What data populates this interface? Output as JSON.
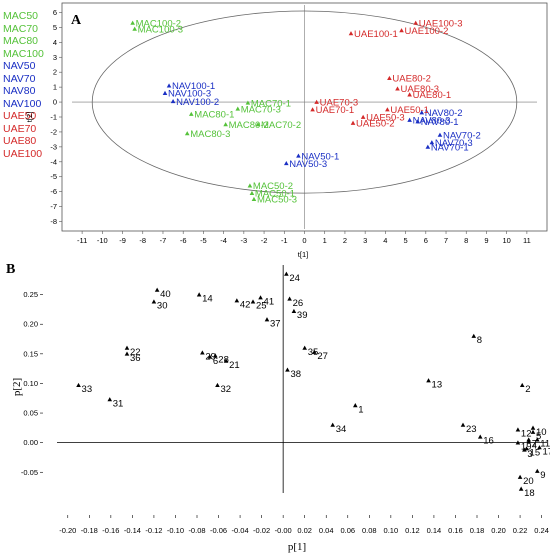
{
  "chart_data": [
    {
      "type": "scatter",
      "panel": "A",
      "xlabel": "t[1]",
      "ylabel": "t[2]",
      "xlim": [
        -11.5,
        11.5
      ],
      "ylim": [
        -8.5,
        6.5
      ],
      "xticks": [
        -11,
        -10,
        -9,
        -8,
        -7,
        -6,
        -5,
        -4,
        -3,
        -2,
        -1,
        0,
        1,
        2,
        3,
        4,
        5,
        6,
        7,
        8,
        9,
        10,
        11
      ],
      "yticks": [
        -8,
        -7,
        -6,
        -5,
        -4,
        -3,
        -2,
        -1,
        0,
        1,
        2,
        3,
        4,
        5,
        6
      ],
      "ellipse": {
        "rx": 10.5,
        "ry": 6.1
      },
      "colors": {
        "MAC": "#55c23a",
        "NAV": "#1a2fc4",
        "UAE": "#d42a2a"
      },
      "legend": [
        {
          "label": "MAC50",
          "color": "#55c23a"
        },
        {
          "label": "MAC70",
          "color": "#55c23a"
        },
        {
          "label": "MAC80",
          "color": "#55c23a"
        },
        {
          "label": "MAC100",
          "color": "#55c23a"
        },
        {
          "label": "NAV50",
          "color": "#1a2fc4"
        },
        {
          "label": "NAV70",
          "color": "#1a2fc4"
        },
        {
          "label": "NAV80",
          "color": "#1a2fc4"
        },
        {
          "label": "NAV100",
          "color": "#1a2fc4"
        },
        {
          "label": "UAE50",
          "color": "#d42a2a"
        },
        {
          "label": "UAE70",
          "color": "#d42a2a"
        },
        {
          "label": "UAE80",
          "color": "#d42a2a"
        },
        {
          "label": "UAE100",
          "color": "#d42a2a"
        }
      ],
      "points": [
        {
          "label": "MAC100-2",
          "group": "MAC",
          "x": -8.5,
          "y": 5.3
        },
        {
          "label": "MAC100-3",
          "group": "MAC",
          "x": -8.4,
          "y": 4.9
        },
        {
          "label": "MAC70-1",
          "group": "MAC",
          "x": -2.8,
          "y": -0.05
        },
        {
          "label": "MAC70-3",
          "group": "MAC",
          "x": -3.3,
          "y": -0.45
        },
        {
          "label": "MAC80-1",
          "group": "MAC",
          "x": -5.6,
          "y": -0.8
        },
        {
          "label": "MAC80-2",
          "group": "MAC",
          "x": -3.9,
          "y": -1.5
        },
        {
          "label": "MAC70-2",
          "group": "MAC",
          "x": -2.3,
          "y": -1.5
        },
        {
          "label": "MAC80-3",
          "group": "MAC",
          "x": -5.8,
          "y": -2.1
        },
        {
          "label": "MAC50-2",
          "group": "MAC",
          "x": -2.7,
          "y": -5.6
        },
        {
          "label": "MAC50-1",
          "group": "MAC",
          "x": -2.6,
          "y": -6.1
        },
        {
          "label": "MAC50-3",
          "group": "MAC",
          "x": -2.5,
          "y": -6.5
        },
        {
          "label": "NAV100-1",
          "group": "NAV",
          "x": -6.7,
          "y": 1.1
        },
        {
          "label": "NAV100-3",
          "group": "NAV",
          "x": -6.9,
          "y": 0.6
        },
        {
          "label": "NAV100-2",
          "group": "NAV",
          "x": -6.5,
          "y": 0.05
        },
        {
          "label": "NAV50-1",
          "group": "NAV",
          "x": -0.3,
          "y": -3.6
        },
        {
          "label": "NAV50-3",
          "group": "NAV",
          "x": -0.9,
          "y": -4.1
        },
        {
          "label": "NAV80-2",
          "group": "NAV",
          "x": 5.8,
          "y": -0.7
        },
        {
          "label": "NAV80-3",
          "group": "NAV",
          "x": 5.2,
          "y": -1.2
        },
        {
          "label": "NAV80-1",
          "group": "NAV",
          "x": 5.6,
          "y": -1.3
        },
        {
          "label": "NAV70-2",
          "group": "NAV",
          "x": 6.7,
          "y": -2.2
        },
        {
          "label": "NAV70-3",
          "group": "NAV",
          "x": 6.3,
          "y": -2.7
        },
        {
          "label": "NAV70-1",
          "group": "NAV",
          "x": 6.1,
          "y": -3.0
        },
        {
          "label": "UAE100-3",
          "group": "UAE",
          "x": 5.5,
          "y": 5.3
        },
        {
          "label": "UAE100-2",
          "group": "UAE",
          "x": 4.8,
          "y": 4.8
        },
        {
          "label": "UAE100-1",
          "group": "UAE",
          "x": 2.3,
          "y": 4.6
        },
        {
          "label": "UAE80-2",
          "group": "UAE",
          "x": 4.2,
          "y": 1.6
        },
        {
          "label": "UAE80-3",
          "group": "UAE",
          "x": 4.6,
          "y": 0.9
        },
        {
          "label": "UAE80-1",
          "group": "UAE",
          "x": 5.2,
          "y": 0.5
        },
        {
          "label": "UAE70-3",
          "group": "UAE",
          "x": 0.6,
          "y": 0.0
        },
        {
          "label": "UAE70-1",
          "group": "UAE",
          "x": 0.4,
          "y": -0.5
        },
        {
          "label": "UAE50-1",
          "group": "UAE",
          "x": 4.1,
          "y": -0.5
        },
        {
          "label": "UAE50-3",
          "group": "UAE",
          "x": 2.9,
          "y": -1.0
        },
        {
          "label": "UAE50-2",
          "group": "UAE",
          "x": 2.4,
          "y": -1.4
        }
      ]
    },
    {
      "type": "scatter",
      "panel": "B",
      "xlabel": "p[1]",
      "ylabel": "p[2]",
      "xlim": [
        -0.21,
        0.245
      ],
      "ylim": [
        -0.085,
        0.3
      ],
      "xticks": [
        -0.2,
        -0.18,
        -0.16,
        -0.14,
        -0.12,
        -0.1,
        -0.08,
        -0.06,
        -0.04,
        -0.02,
        0.0,
        0.02,
        0.04,
        0.06,
        0.08,
        0.1,
        0.12,
        0.14,
        0.16,
        0.18,
        0.2,
        0.22,
        0.24
      ],
      "xtick_labels": [
        "-0.20",
        "-0.18",
        "-0.16",
        "-0.14",
        "-0.12",
        "-0.10",
        "-0.08",
        "-0.06",
        "-0.04",
        "-0.02",
        "-0.00",
        "0.02",
        "0.04",
        "0.06",
        "0.08",
        "0.10",
        "0.12",
        "0.14",
        "0.16",
        "0.18",
        "0.20",
        "0.22",
        "0.24"
      ],
      "yticks": [
        -0.05,
        0.0,
        0.05,
        0.1,
        0.15,
        0.2,
        0.25
      ],
      "ytick_labels": [
        "-0.05",
        "0.00",
        "0.05",
        "0.10",
        "0.15",
        "0.20",
        "0.25"
      ],
      "points": [
        {
          "label": "1",
          "x": 0.067,
          "y": 0.063
        },
        {
          "label": "2",
          "x": 0.222,
          "y": 0.097
        },
        {
          "label": "3",
          "x": 0.224,
          "y": -0.012
        },
        {
          "label": "4",
          "x": 0.228,
          "y": 0.002
        },
        {
          "label": "5",
          "x": 0.232,
          "y": 0.018
        },
        {
          "label": "6",
          "x": -0.068,
          "y": 0.145
        },
        {
          "label": "7",
          "x": 0.228,
          "y": 0.005
        },
        {
          "label": "8",
          "x": 0.177,
          "y": 0.18
        },
        {
          "label": "9",
          "x": 0.236,
          "y": -0.048
        },
        {
          "label": "10",
          "x": 0.232,
          "y": 0.025
        },
        {
          "label": "11",
          "x": 0.236,
          "y": 0.005
        },
        {
          "label": "12",
          "x": 0.218,
          "y": 0.022
        },
        {
          "label": "13",
          "x": 0.135,
          "y": 0.105
        },
        {
          "label": "14",
          "x": -0.078,
          "y": 0.25
        },
        {
          "label": "15",
          "x": 0.226,
          "y": -0.01
        },
        {
          "label": "16",
          "x": 0.183,
          "y": 0.01
        },
        {
          "label": "17",
          "x": 0.238,
          "y": -0.008
        },
        {
          "label": "18",
          "x": 0.221,
          "y": -0.078
        },
        {
          "label": "19",
          "x": 0.218,
          "y": 0.0
        },
        {
          "label": "20",
          "x": 0.22,
          "y": -0.058
        },
        {
          "label": "21",
          "x": -0.053,
          "y": 0.138
        },
        {
          "label": "22",
          "x": -0.145,
          "y": 0.16
        },
        {
          "label": "23",
          "x": 0.167,
          "y": 0.03
        },
        {
          "label": "24",
          "x": 0.003,
          "y": 0.285
        },
        {
          "label": "25",
          "x": -0.028,
          "y": 0.238
        },
        {
          "label": "26",
          "x": 0.006,
          "y": 0.243
        },
        {
          "label": "27",
          "x": 0.029,
          "y": 0.153
        },
        {
          "label": "28",
          "x": -0.063,
          "y": 0.147
        },
        {
          "label": "29",
          "x": -0.075,
          "y": 0.152
        },
        {
          "label": "30",
          "x": -0.12,
          "y": 0.238
        },
        {
          "label": "31",
          "x": -0.161,
          "y": 0.073
        },
        {
          "label": "32",
          "x": -0.061,
          "y": 0.097
        },
        {
          "label": "33",
          "x": -0.19,
          "y": 0.097
        },
        {
          "label": "34",
          "x": 0.046,
          "y": 0.03
        },
        {
          "label": "35",
          "x": 0.02,
          "y": 0.16
        },
        {
          "label": "36",
          "x": -0.145,
          "y": 0.15
        },
        {
          "label": "37",
          "x": -0.015,
          "y": 0.208
        },
        {
          "label": "38",
          "x": 0.004,
          "y": 0.123
        },
        {
          "label": "39",
          "x": 0.01,
          "y": 0.222
        },
        {
          "label": "40",
          "x": -0.117,
          "y": 0.258
        },
        {
          "label": "41",
          "x": -0.021,
          "y": 0.245
        },
        {
          "label": "42",
          "x": -0.043,
          "y": 0.24
        }
      ]
    }
  ]
}
